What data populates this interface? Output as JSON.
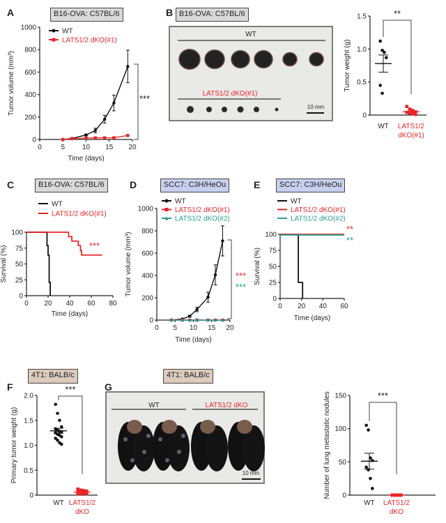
{
  "panels": {
    "A": {
      "label": "A",
      "title": "B16-OVA: C57BL/6",
      "title_color": "#d9d9d9"
    },
    "B": {
      "label": "B",
      "title": "B16-OVA: C57BL/6",
      "title_color": "#d9d9d9",
      "photo": {
        "wt_label": "WT",
        "ko_label": "LATS1/2 dKO(#1)",
        "scale_bar": "10 mm",
        "wt_count": 6,
        "ko_count": 6
      }
    },
    "C": {
      "label": "C",
      "title": "B16-OVA: C57BL/6",
      "title_color": "#d9d9d9"
    },
    "D": {
      "label": "D",
      "title": "SCC7: C3H/HeOu",
      "title_color": "#c9cfee"
    },
    "E": {
      "label": "E",
      "title": "SCC7: C3H/HeOu",
      "title_color": "#c9cfee"
    },
    "F": {
      "label": "F",
      "title": "4T1: BALB/c",
      "title_color": "#dccbbb"
    },
    "G": {
      "label": "G",
      "title": "4T1: BALB/c",
      "title_color": "#dccbbb",
      "photo": {
        "wt_label": "WT",
        "ko_label": "LATS1/2 dKO",
        "scale_bar": "10 mm",
        "wt_count": 2,
        "ko_count": 2
      }
    }
  },
  "colors": {
    "wt": "#111111",
    "ko1": "#e8262a",
    "ko2": "#2a9a92"
  },
  "chart_data": [
    {
      "id": "A",
      "type": "line",
      "xlabel": "Time (days)",
      "ylabel": "Tumor volume (mm³)",
      "xlim": [
        0,
        20
      ],
      "ylim": [
        0,
        1000
      ],
      "xticks": [
        0,
        5,
        10,
        15,
        20
      ],
      "yticks": [
        0,
        200,
        400,
        600,
        800,
        1000
      ],
      "significance": [
        {
          "text": "***",
          "color": "#222222"
        }
      ],
      "series": [
        {
          "name": "WT",
          "color": "#111111",
          "marker": "circle",
          "x": [
            5,
            7,
            10,
            12,
            14,
            16,
            19
          ],
          "y": [
            0,
            10,
            40,
            80,
            180,
            325,
            650
          ],
          "err": [
            0,
            5,
            8,
            20,
            35,
            70,
            145
          ]
        },
        {
          "name": "LATS1/2 dKO(#1)",
          "color": "#e8262a",
          "marker": "square",
          "x": [
            5,
            7,
            10,
            12,
            14,
            16,
            19
          ],
          "y": [
            0,
            8,
            12,
            14,
            15,
            15,
            35
          ],
          "err": [
            0,
            0,
            0,
            0,
            0,
            0,
            0
          ]
        }
      ]
    },
    {
      "id": "B",
      "type": "scatter",
      "xlabel": "",
      "ylabel": "Tumor weight (g)",
      "ylim": [
        0,
        1.5
      ],
      "yticks": [
        0,
        0.5,
        1.0,
        1.5
      ],
      "categories": [
        "WT",
        "LATS1/2 dKO(#1)"
      ],
      "category_lines": [
        [
          "WT"
        ],
        [
          "LATS1/2",
          "dKO(#1)"
        ]
      ],
      "significance": "**",
      "groups": [
        {
          "name": "WT",
          "color": "#111111",
          "values": [
            1.12,
            0.98,
            0.95,
            0.87,
            0.45,
            0.33
          ],
          "mean": 0.78,
          "sem": 0.13
        },
        {
          "name": "LATS1/2 dKO(#1)",
          "color": "#e8262a",
          "values": [
            0.13,
            0.09,
            0.07,
            0.05,
            0.04,
            0.03,
            0.02,
            0.01
          ],
          "mean": 0.05,
          "sem": 0.01
        }
      ]
    },
    {
      "id": "C",
      "type": "survival",
      "xlabel": "Time (days)",
      "ylabel": "Survival (%)",
      "xlim": [
        0,
        80
      ],
      "ylim": [
        0,
        100
      ],
      "xticks": [
        0,
        20,
        40,
        60,
        80
      ],
      "yticks": [
        0,
        25,
        50,
        75,
        100
      ],
      "significance": [
        {
          "text": "***",
          "color": "#e8262a"
        }
      ],
      "series": [
        {
          "name": "WT",
          "color": "#111111",
          "steps": [
            [
              0,
              100
            ],
            [
              19,
              100
            ],
            [
              19,
              79
            ],
            [
              20,
              79
            ],
            [
              20,
              64
            ],
            [
              21,
              64
            ],
            [
              21,
              21
            ],
            [
              22,
              21
            ],
            [
              22,
              0
            ]
          ]
        },
        {
          "name": "LATS1/2 dKO(#1)",
          "color": "#e8262a",
          "steps": [
            [
              0,
              100
            ],
            [
              39,
              100
            ],
            [
              39,
              93
            ],
            [
              42,
              93
            ],
            [
              42,
              86
            ],
            [
              48,
              86
            ],
            [
              48,
              79
            ],
            [
              50,
              79
            ],
            [
              50,
              71
            ],
            [
              51,
              71
            ],
            [
              51,
              64
            ],
            [
              70,
              64
            ]
          ]
        }
      ]
    },
    {
      "id": "D",
      "type": "line",
      "xlabel": "Time (days)",
      "ylabel": "Tumor volume (mm³)",
      "xlim": [
        0,
        20
      ],
      "ylim": [
        0,
        1000
      ],
      "xticks": [
        0,
        5,
        10,
        15,
        20
      ],
      "yticks": [
        0,
        200,
        400,
        600,
        800,
        1000
      ],
      "significance": [
        {
          "text": "***",
          "color": "#e8262a"
        },
        {
          "text": "***",
          "color": "#2a9a92"
        }
      ],
      "series": [
        {
          "name": "WT",
          "color": "#111111",
          "marker": "circle",
          "x": [
            4,
            7,
            9,
            11,
            14,
            16,
            18
          ],
          "y": [
            0,
            10,
            35,
            95,
            205,
            405,
            710
          ],
          "err": [
            0,
            3,
            8,
            20,
            45,
            90,
            135
          ]
        },
        {
          "name": "LATS1/2 dKO(#1)",
          "color": "#e8262a",
          "marker": "square",
          "x": [
            4,
            7,
            9,
            11,
            14,
            16,
            18
          ],
          "y": [
            0,
            0,
            0,
            0,
            0,
            0,
            0
          ],
          "err": [
            0,
            0,
            0,
            0,
            0,
            0,
            0
          ]
        },
        {
          "name": "LATS1/2 dKO(#2)",
          "color": "#2a9a92",
          "marker": "triangle",
          "x": [
            4,
            7,
            9,
            11,
            14,
            16,
            18
          ],
          "y": [
            0,
            0,
            0,
            0,
            0,
            0,
            0
          ],
          "err": [
            0,
            0,
            0,
            0,
            0,
            0,
            0
          ]
        }
      ]
    },
    {
      "id": "E",
      "type": "survival",
      "xlabel": "Time (days)",
      "ylabel": "Survival (%)",
      "xlim": [
        0,
        60
      ],
      "ylim": [
        0,
        100
      ],
      "xticks": [
        0,
        20,
        40,
        60
      ],
      "yticks": [
        0,
        25,
        50,
        75,
        100
      ],
      "significance": [
        {
          "text": "**",
          "color": "#e8262a"
        },
        {
          "text": "**",
          "color": "#2a9a92"
        }
      ],
      "series": [
        {
          "name": "WT",
          "color": "#111111",
          "steps": [
            [
              0,
              100
            ],
            [
              17,
              100
            ],
            [
              17,
              25
            ],
            [
              21,
              25
            ],
            [
              21,
              0
            ]
          ]
        },
        {
          "name": "LATS1/2 dKO(#1)",
          "color": "#e8262a",
          "steps": [
            [
              0,
              100
            ],
            [
              60,
              100
            ]
          ]
        },
        {
          "name": "LATS1/2 dKO(#2)",
          "color": "#2a9a92",
          "steps": [
            [
              0,
              99
            ],
            [
              60,
              99
            ]
          ]
        }
      ]
    },
    {
      "id": "F",
      "type": "scatter",
      "xlabel": "",
      "ylabel": "Primary tumor weight (g)",
      "ylim": [
        0,
        2.0
      ],
      "yticks": [
        0,
        0.5,
        1.0,
        1.5,
        2.0
      ],
      "categories": [
        "WT",
        "LATS1/2 dKO"
      ],
      "category_lines": [
        [
          "WT"
        ],
        [
          "LATS1/2",
          "dKO"
        ]
      ],
      "significance": "***",
      "groups": [
        {
          "name": "WT",
          "color": "#111111",
          "values": [
            1.82,
            1.64,
            1.5,
            1.37,
            1.33,
            1.3,
            1.28,
            1.27,
            1.25,
            1.22,
            1.2,
            1.17,
            1.14,
            1.1,
            1.05,
            1.02
          ],
          "mean": 1.29,
          "sem": 0.05
        },
        {
          "name": "LATS1/2 dKO",
          "color": "#e8262a",
          "values": [
            0.12,
            0.1,
            0.09,
            0.08,
            0.07,
            0.07,
            0.06,
            0.05,
            0.05,
            0.04,
            0.04,
            0.03,
            0.03,
            0.02
          ],
          "mean": 0.06,
          "sem": 0.01
        }
      ]
    },
    {
      "id": "G",
      "type": "scatter",
      "xlabel": "",
      "ylabel": "Number of lung metastatic nodules",
      "ylim": [
        0,
        150
      ],
      "yticks": [
        0,
        50,
        100,
        150
      ],
      "categories": [
        "WT",
        "LATS1/2 dKO"
      ],
      "category_lines": [
        [
          "WT"
        ],
        [
          "LATS1/2",
          "dKO"
        ]
      ],
      "significance": "***",
      "groups": [
        {
          "name": "WT",
          "color": "#111111",
          "values": [
            105,
            98,
            56,
            52,
            42,
            38,
            25,
            10
          ],
          "mean": 51,
          "sem": 12
        },
        {
          "name": "LATS1/2 dKO",
          "color": "#e8262a",
          "values": [
            0,
            0,
            0,
            0,
            0,
            0,
            0,
            0
          ],
          "mean": 0,
          "sem": 0
        }
      ]
    }
  ]
}
